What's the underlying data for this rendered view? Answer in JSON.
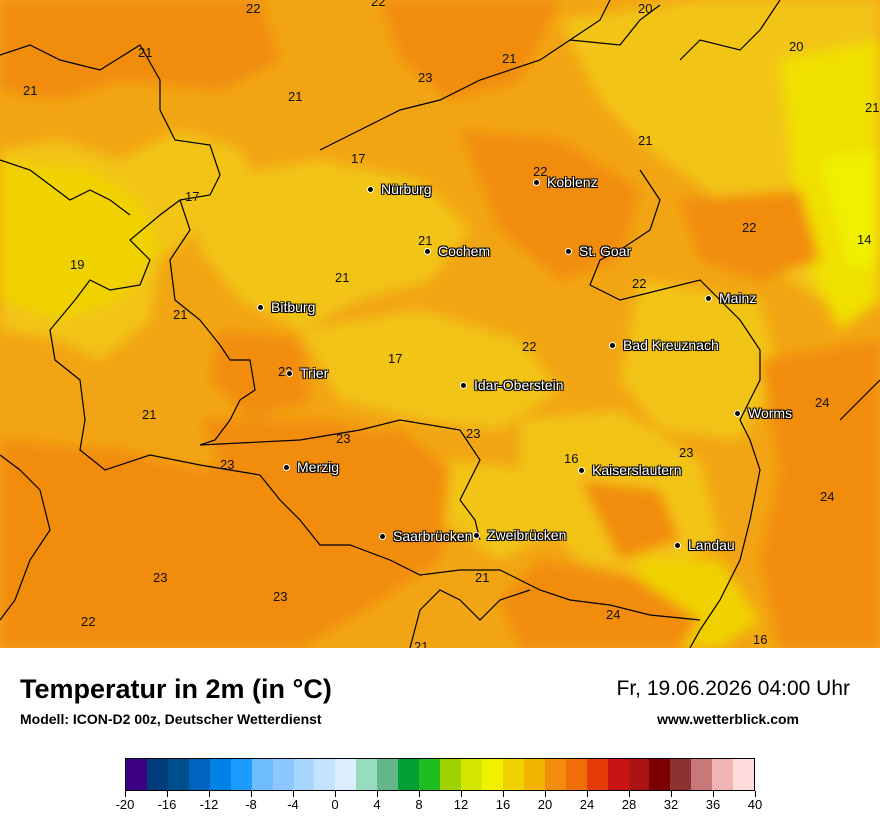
{
  "footer": {
    "title": "Temperatur in 2m (in °C)",
    "subtitle": "Modell: ICON-D2 00z, Deutscher Wetterdienst",
    "datetime": "Fr, 19.06.2026 04:00 Uhr",
    "website": "www.wetterblick.com"
  },
  "cities": [
    {
      "name": "Nürburg"
    },
    {
      "name": "Koblenz"
    },
    {
      "name": "Cochem"
    },
    {
      "name": "St. Goar"
    },
    {
      "name": "Mainz"
    },
    {
      "name": "Bitburg"
    },
    {
      "name": "Bad Kreuznach"
    },
    {
      "name": "Trier"
    },
    {
      "name": "Idar-Oberstein"
    },
    {
      "name": "Worms"
    },
    {
      "name": "Merzig"
    },
    {
      "name": "Kaiserslautern"
    },
    {
      "name": "Saarbrücken"
    },
    {
      "name": "Zweibrücken"
    },
    {
      "name": "Landau"
    }
  ],
  "temperature_values": [
    "22",
    "22",
    "20",
    "21",
    "21",
    "20",
    "21",
    "23",
    "21",
    "21",
    "17",
    "21",
    "22",
    "17",
    "22",
    "14",
    "19",
    "21",
    "22",
    "21",
    "21",
    "17",
    "22",
    "16",
    "22",
    "21",
    "23",
    "23",
    "24",
    "16",
    "23",
    "24",
    "23",
    "21",
    "23",
    "22",
    "24",
    "23",
    "16",
    "21"
  ],
  "colorscale": {
    "colors": [
      "#3b0083",
      "#003d7a",
      "#004e8c",
      "#0064be",
      "#0082e6",
      "#1e9bff",
      "#6fbcff",
      "#8cc8ff",
      "#a8d6ff",
      "#c4e3ff",
      "#dcedff",
      "#96dcbe",
      "#64b48c",
      "#00a032",
      "#1ebe1e",
      "#9ed200",
      "#d2e600",
      "#f0f000",
      "#f0d200",
      "#f2b400",
      "#f28c0a",
      "#f06e0a",
      "#e63c0a",
      "#c81414",
      "#aa1414",
      "#7d0000",
      "#8c3232",
      "#c87878",
      "#f0b4b4",
      "#ffdcdc"
    ],
    "labels": [
      "-20",
      "-16",
      "-12",
      "-8",
      "-4",
      "0",
      "4",
      "8",
      "12",
      "16",
      "20",
      "24",
      "28",
      "32",
      "36",
      "40"
    ]
  }
}
